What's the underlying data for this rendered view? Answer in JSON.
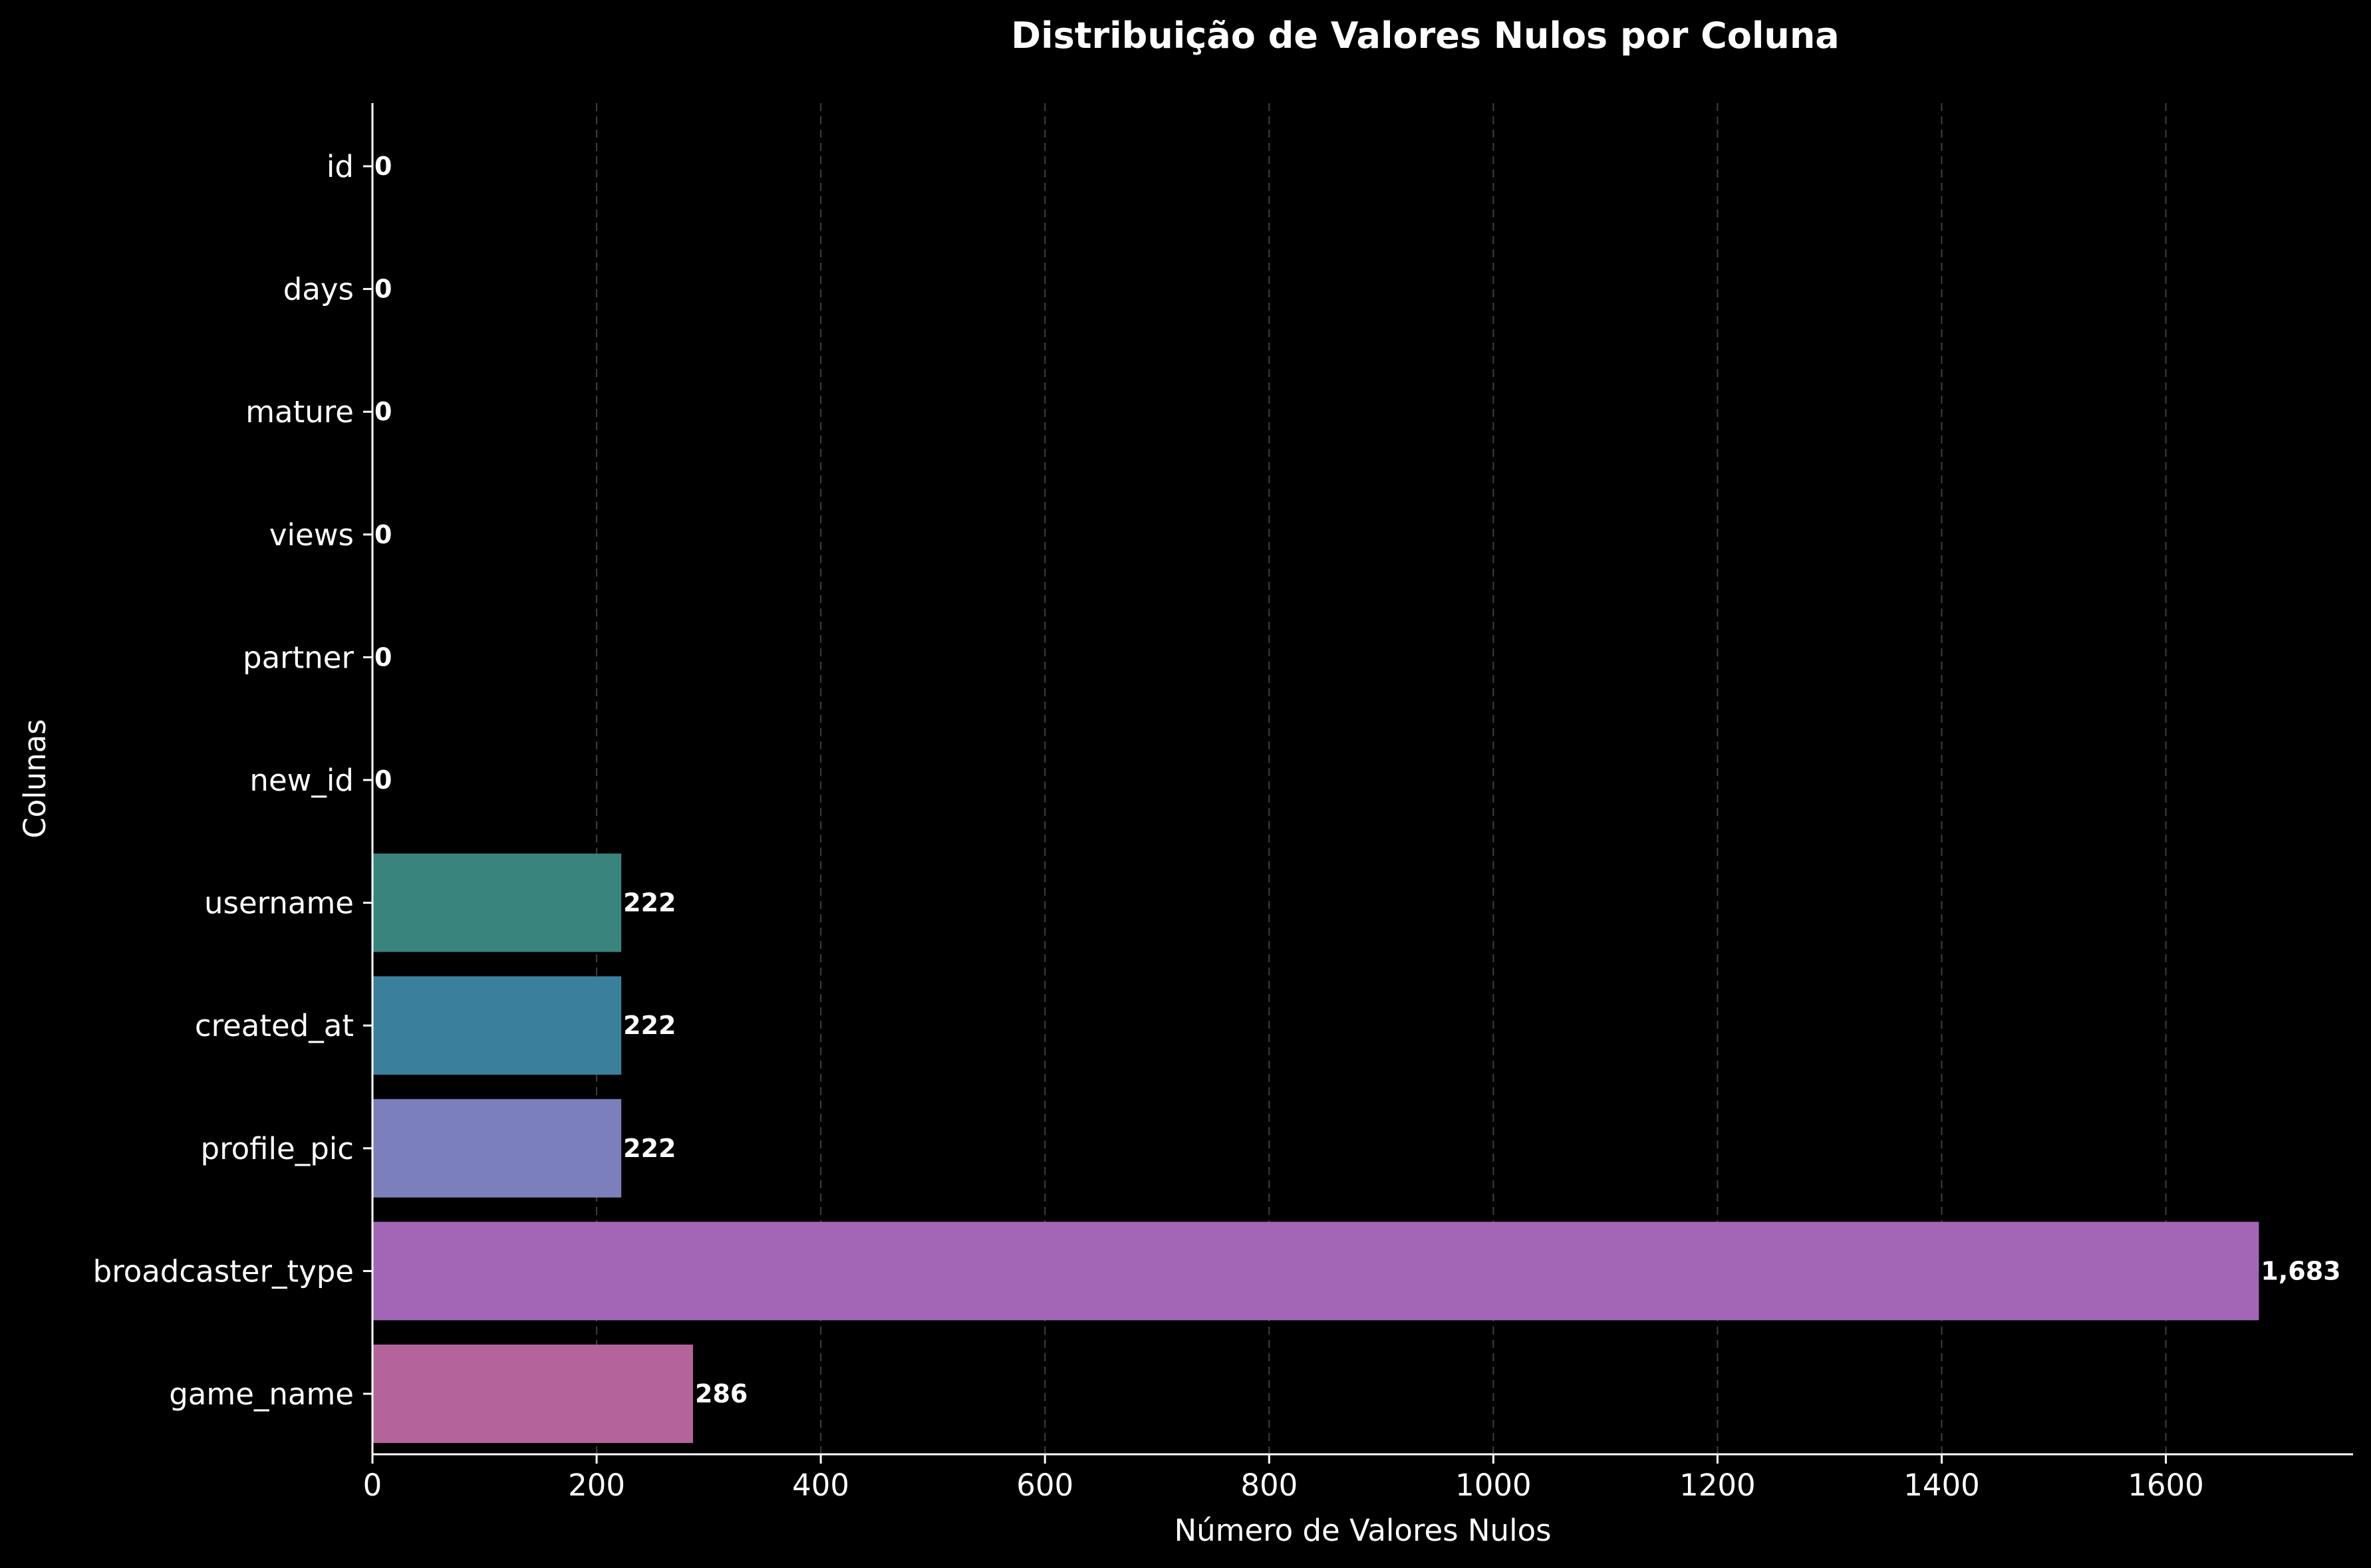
{
  "chart_data": {
    "type": "bar",
    "orientation": "horizontal",
    "title": "Distribuição de Valores Nulos por Coluna",
    "xlabel": "Número de Valores Nulos",
    "ylabel": "Colunas",
    "categories": [
      "id",
      "days",
      "mature",
      "views",
      "partner",
      "new_id",
      "username",
      "created_at",
      "profile_pic",
      "broadcaster_type",
      "game_name"
    ],
    "values": [
      0,
      0,
      0,
      0,
      0,
      0,
      222,
      222,
      222,
      1683,
      286
    ],
    "value_labels": [
      "0",
      "0",
      "0",
      "0",
      "0",
      "0",
      "222",
      "222",
      "222",
      "1,683",
      "286"
    ],
    "colors": [
      "#2a6b7a",
      "#2d7080",
      "#30758a",
      "#347a8a",
      "#367d86",
      "#378582",
      "#3a847e",
      "#3a7f9c",
      "#7b7fbb",
      "#a366b7",
      "#b4649a"
    ],
    "xlim": [
      0,
      1767
    ],
    "xticks": [
      0,
      200,
      400,
      600,
      800,
      1000,
      1200,
      1400,
      1600
    ],
    "grid": "x-dashed"
  }
}
